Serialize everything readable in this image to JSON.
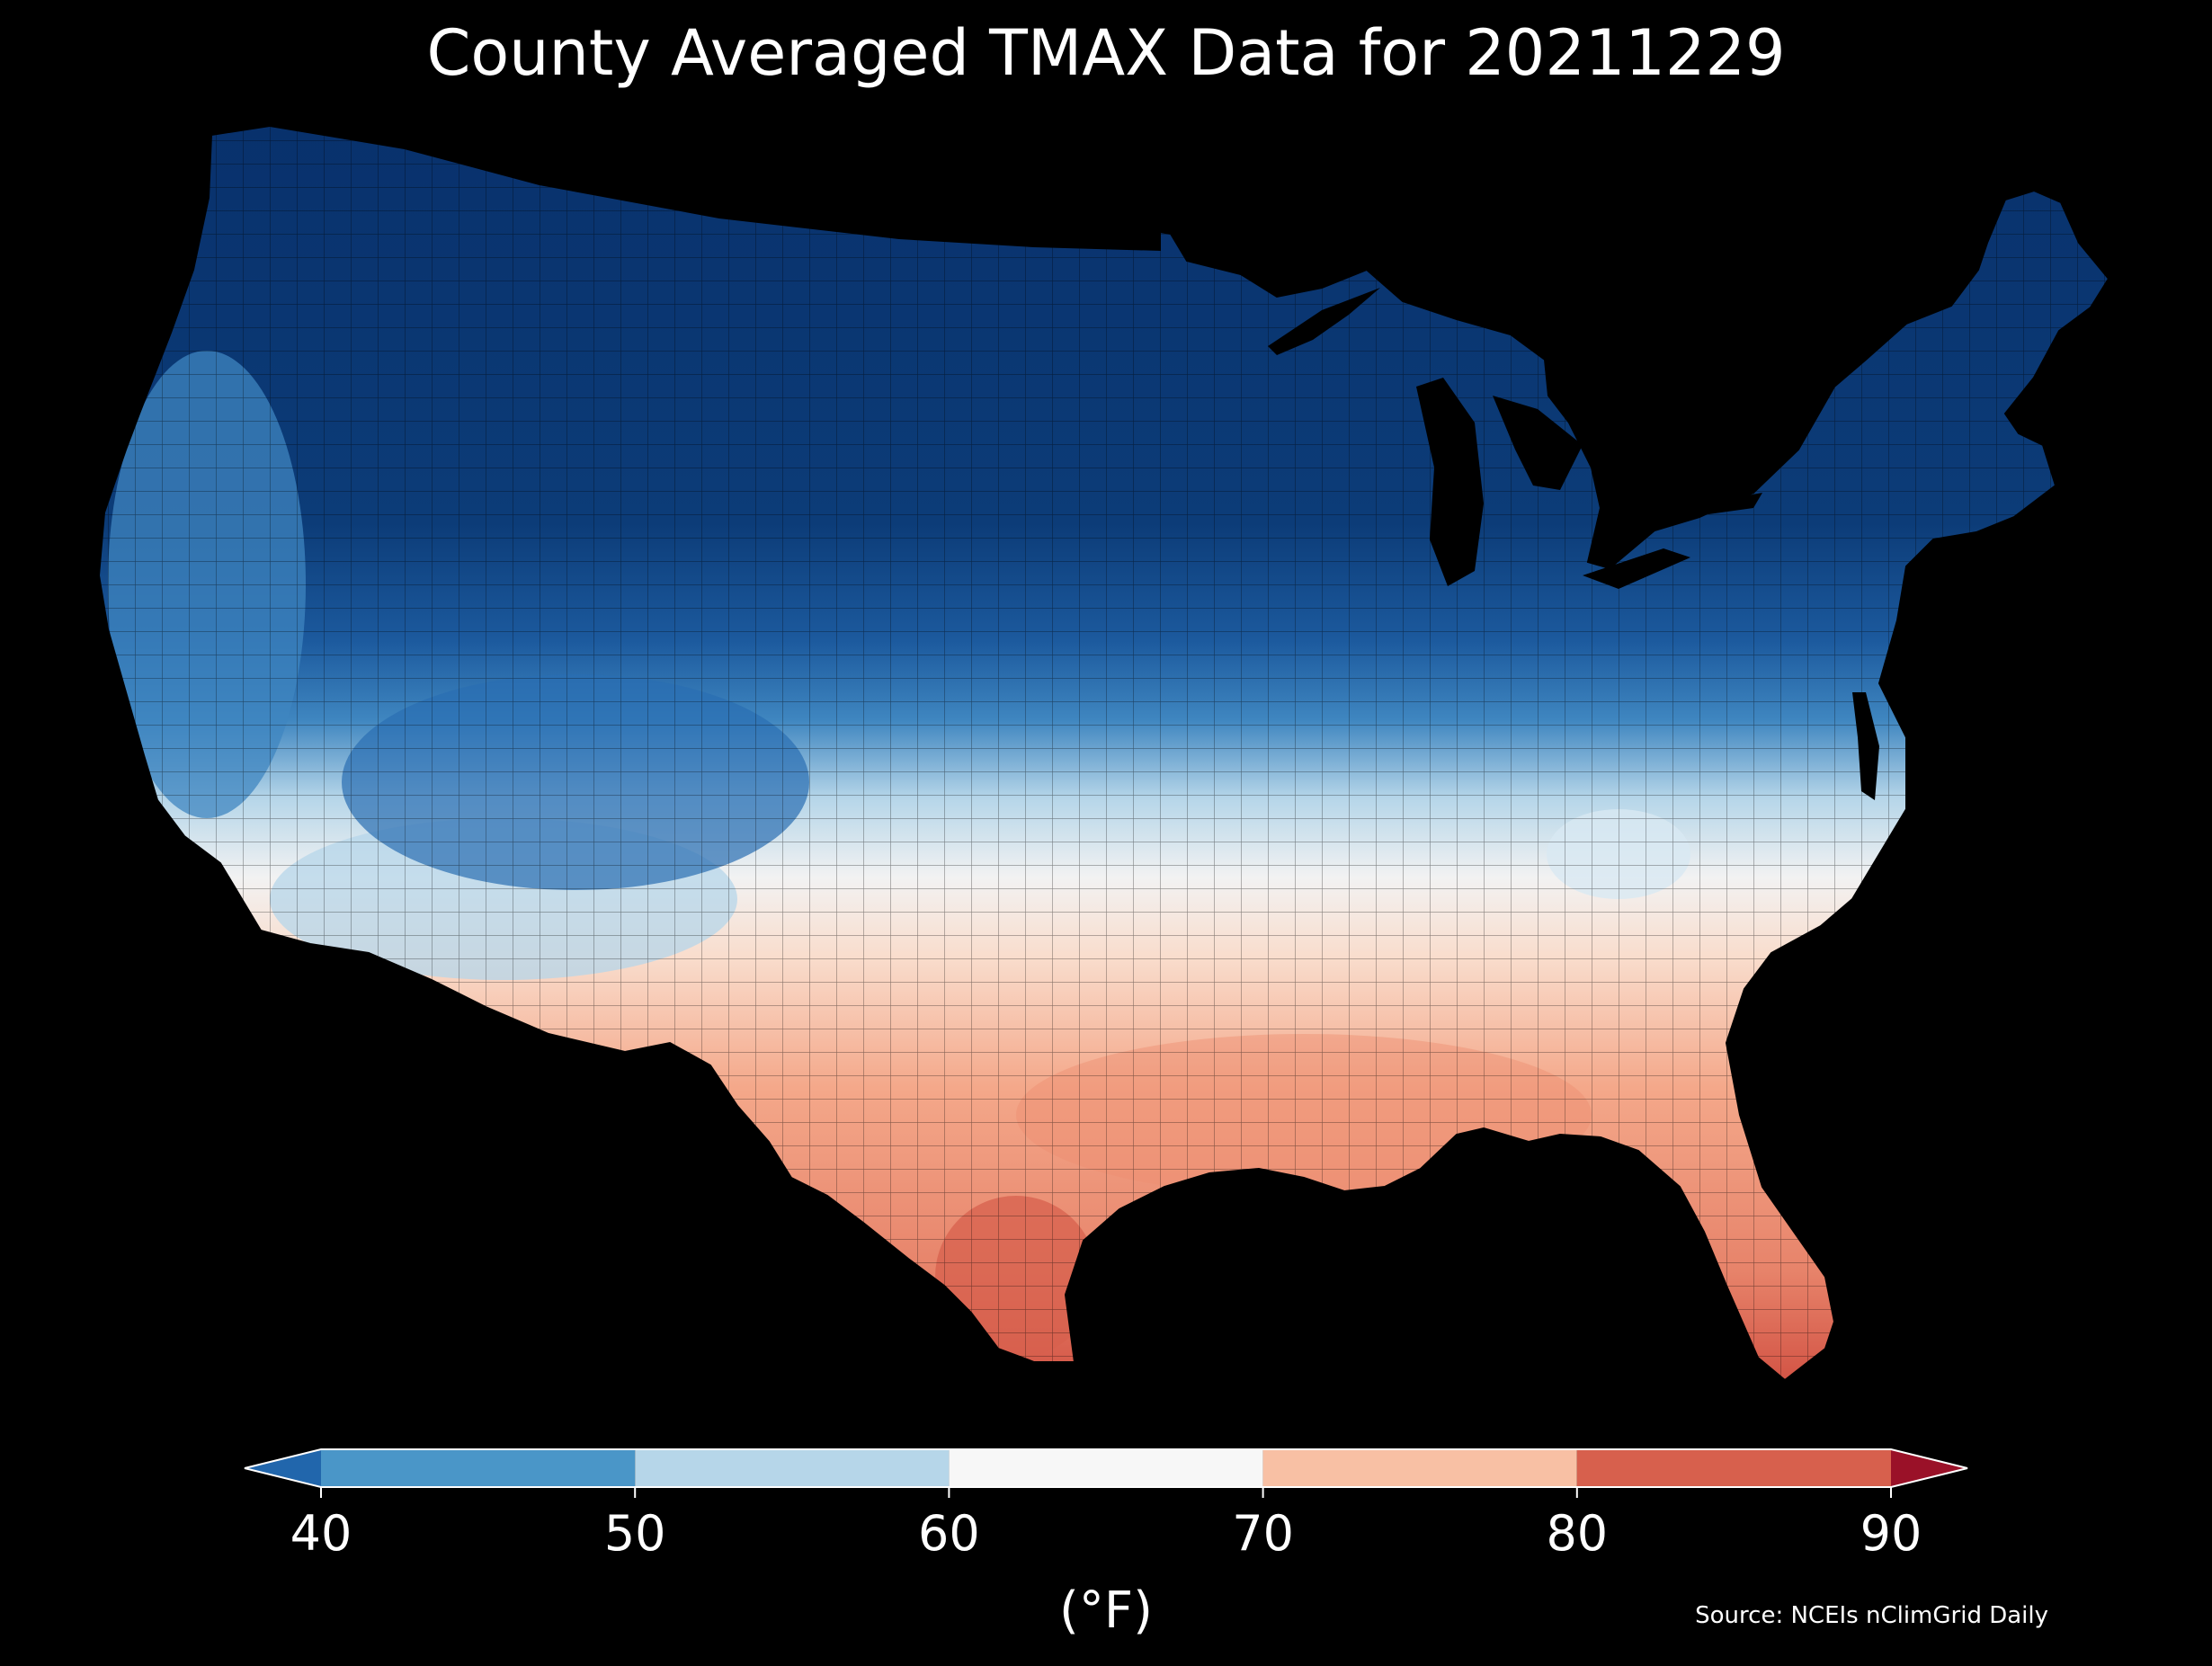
{
  "title": "County Averaged TMAX Data for 20211229",
  "source": "Source: NCEIs nClimGrid Daily",
  "colorbar": {
    "label": "(°F)",
    "ticks": [
      "40",
      "50",
      "60",
      "70",
      "80",
      "90"
    ],
    "bins": [
      {
        "range": "<40",
        "color": "#2166ac"
      },
      {
        "range": "40-50",
        "color": "#4a96c8"
      },
      {
        "range": "50-60",
        "color": "#b6d6e9"
      },
      {
        "range": "60-70",
        "color": "#f7f7f7"
      },
      {
        "range": "70-80",
        "color": "#f8c0a4"
      },
      {
        "range": "80-90",
        "color": "#d7604d"
      },
      {
        "range": ">90",
        "color": "#9a1128"
      }
    ],
    "extend": "both"
  },
  "map": {
    "region": "Contiguous United States",
    "units": "county",
    "background": "#000000",
    "border_color": "#000000"
  }
}
